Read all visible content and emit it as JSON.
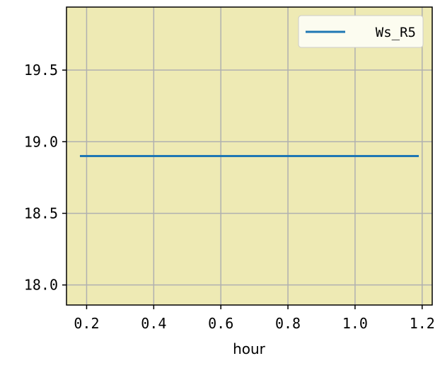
{
  "chart_data": {
    "type": "line",
    "title": "",
    "xlabel": "hour",
    "ylabel": "",
    "xlim": [
      0.14,
      1.23
    ],
    "ylim": [
      17.86,
      19.94
    ],
    "xticks": [
      0.2,
      0.4,
      0.6,
      0.8,
      1.0,
      1.2
    ],
    "xtick_labels": [
      "0.2",
      "0.4",
      "0.6",
      "0.8",
      "1.0",
      "1.2"
    ],
    "yticks": [
      18.0,
      18.5,
      19.0,
      19.5
    ],
    "ytick_labels": [
      "18.0",
      "18.5",
      "19.0",
      "19.5"
    ],
    "grid": true,
    "legend_position": "top-right",
    "colors": {
      "axes_background": "#eeeab4",
      "line": "#1f77b4",
      "grid": "#b0b0b0",
      "legend_background": "#fcfcf0"
    },
    "series": [
      {
        "name": "Ws_R5",
        "x": [
          0.18,
          1.19
        ],
        "y": [
          18.9,
          18.9
        ]
      }
    ]
  }
}
